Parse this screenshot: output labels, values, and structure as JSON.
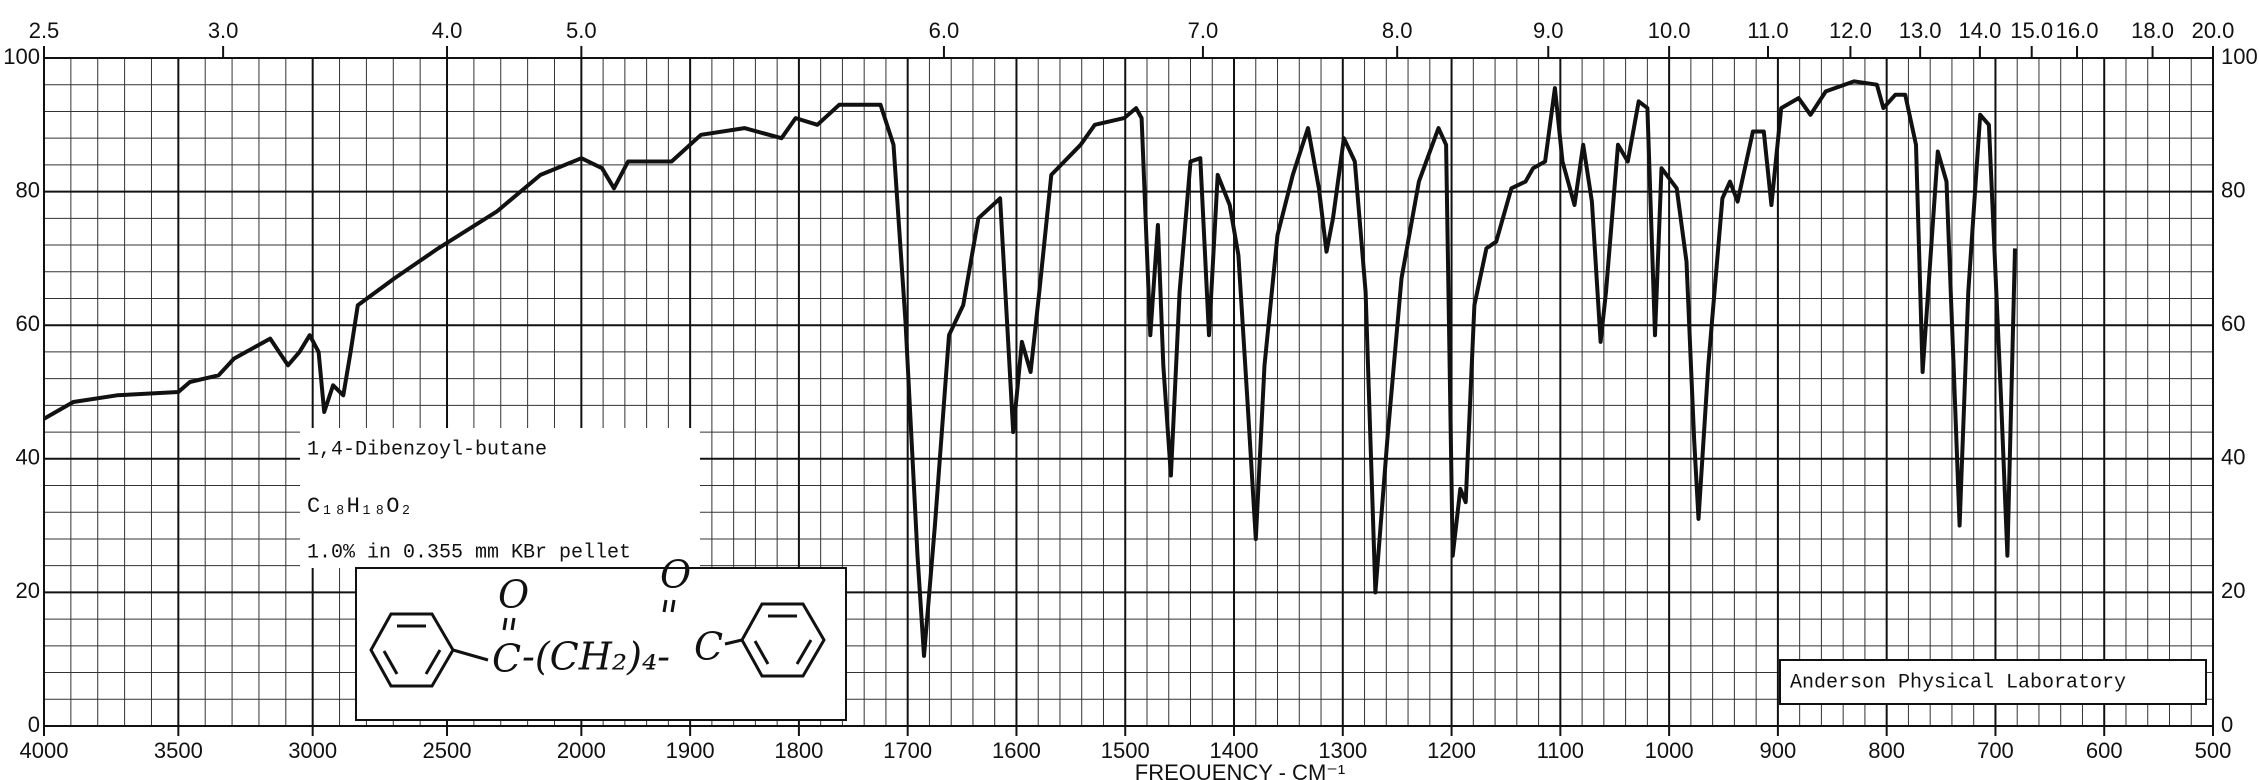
{
  "chart_data": {
    "type": "line",
    "x_label": "FREQUENCY - CM⁻¹",
    "x": [
      4000,
      3891,
      3728,
      3500,
      3457,
      3350,
      3293,
      3158,
      3092,
      3049,
      3011,
      2978,
      2957,
      2924,
      2886,
      2859,
      2832,
      2696,
      2533,
      2315,
      2152,
      2000,
      1981,
      1970,
      1957,
      1917,
      1890,
      1850,
      1816,
      1803,
      1783,
      1763,
      1736,
      1725,
      1713,
      1702,
      1691,
      1685,
      1675,
      1662,
      1649,
      1635,
      1615,
      1608,
      1603,
      1595,
      1587,
      1579,
      1568,
      1541,
      1528,
      1501,
      1490,
      1485,
      1477,
      1470,
      1465,
      1458,
      1450,
      1440,
      1431,
      1423,
      1415,
      1404,
      1396,
      1388,
      1380,
      1372,
      1360,
      1346,
      1332,
      1322,
      1315,
      1309,
      1299,
      1289,
      1279,
      1270,
      1259,
      1246,
      1230,
      1212,
      1205,
      1199,
      1192,
      1187,
      1179,
      1168,
      1159,
      1145,
      1132,
      1125,
      1114,
      1105,
      1098,
      1087,
      1079,
      1071,
      1063,
      1058,
      1047,
      1038,
      1028,
      1020,
      1013,
      1007,
      993,
      984,
      977,
      973,
      964,
      951,
      944,
      937,
      923,
      913,
      906,
      897,
      881,
      870,
      856,
      830,
      809,
      803,
      792,
      783,
      773,
      767,
      760,
      753,
      745,
      738,
      733,
      725,
      714,
      706,
      695,
      689,
      682
    ],
    "values": [
      46,
      48.5,
      49.5,
      50,
      51.5,
      52.5,
      55,
      58,
      54,
      56,
      58.5,
      56,
      47,
      51,
      49.5,
      56,
      63,
      67,
      71.5,
      77,
      82.5,
      85,
      83.5,
      80.5,
      84.5,
      84.5,
      88.5,
      89.5,
      88,
      91,
      90,
      93,
      93,
      93,
      87,
      60.5,
      25.5,
      10.5,
      30,
      58.5,
      63,
      76,
      79,
      58.5,
      44,
      57.5,
      53,
      65,
      82.5,
      87,
      90,
      91,
      92.5,
      91,
      58.5,
      75,
      54,
      37.5,
      65,
      84.5,
      85,
      58.5,
      82.5,
      78,
      70.5,
      49.5,
      28,
      54,
      73.5,
      82.5,
      89.5,
      80.5,
      71,
      76,
      88,
      84.5,
      65,
      20,
      43,
      67,
      81.5,
      89.5,
      87,
      25.5,
      35.5,
      33.5,
      63,
      71.5,
      72.5,
      80.5,
      81.5,
      83.5,
      84.5,
      95.5,
      84.5,
      78,
      87,
      78.5,
      57.5,
      65,
      87,
      84.5,
      93.5,
      92.5,
      58.5,
      83.5,
      80.5,
      69.5,
      43,
      31,
      54,
      79,
      81.5,
      78.5,
      89,
      89,
      78,
      92.5,
      94,
      91.5,
      95,
      96.5,
      96,
      92.5,
      94.5,
      94.5,
      87,
      53,
      69.5,
      86,
      81.5,
      52,
      30,
      65,
      91.5,
      90,
      49.5,
      25.5,
      71.5
    ],
    "color": "#111111",
    "xlim": [
      4000,
      500
    ],
    "xticks": [
      4000,
      3500,
      3000,
      2500,
      2000,
      1900,
      1800,
      1700,
      1600,
      1500,
      1400,
      1300,
      1200,
      1100,
      1000,
      900,
      800,
      700,
      600,
      500
    ],
    "x2lim": [
      2.5,
      20
    ],
    "x2ticks": [
      2.5,
      {
        "value": 3,
        "label": "3.0"
      },
      {
        "value": 4,
        "label": "4.0"
      },
      {
        "value": 5,
        "label": "5.0"
      },
      {
        "value": 6,
        "label": "6.0"
      },
      {
        "value": 7,
        "label": "7.0"
      },
      {
        "value": 8,
        "label": "8.0"
      },
      {
        "value": 9,
        "label": "9.0"
      },
      {
        "value": 10,
        "label": "10.0"
      },
      {
        "value": 11,
        "label": "11.0"
      },
      {
        "value": 12,
        "label": "12.0"
      },
      {
        "value": 13,
        "label": "13.0"
      },
      {
        "value": 14,
        "label": "14.0"
      },
      {
        "value": 15,
        "label": "15.0"
      },
      {
        "value": 16,
        "label": "16.0"
      },
      {
        "value": 18,
        "label": "18.0"
      },
      {
        "value": 20,
        "label": "20.0"
      }
    ],
    "ylim": [
      0,
      100
    ],
    "yticks": [
      0,
      20,
      40,
      60,
      80,
      100
    ],
    "grid": true,
    "annotations": {
      "compound": "1,4-Dibenzoyl-butane",
      "formula": "C₁₈H₁₈O₂",
      "sample": "1.0% in 0.355 mm  KBr pellet",
      "lab": "Anderson Physical Laboratory"
    },
    "structure": [
      "O",
      "C",
      "-(CH₂)₄-",
      "C",
      "O"
    ]
  }
}
